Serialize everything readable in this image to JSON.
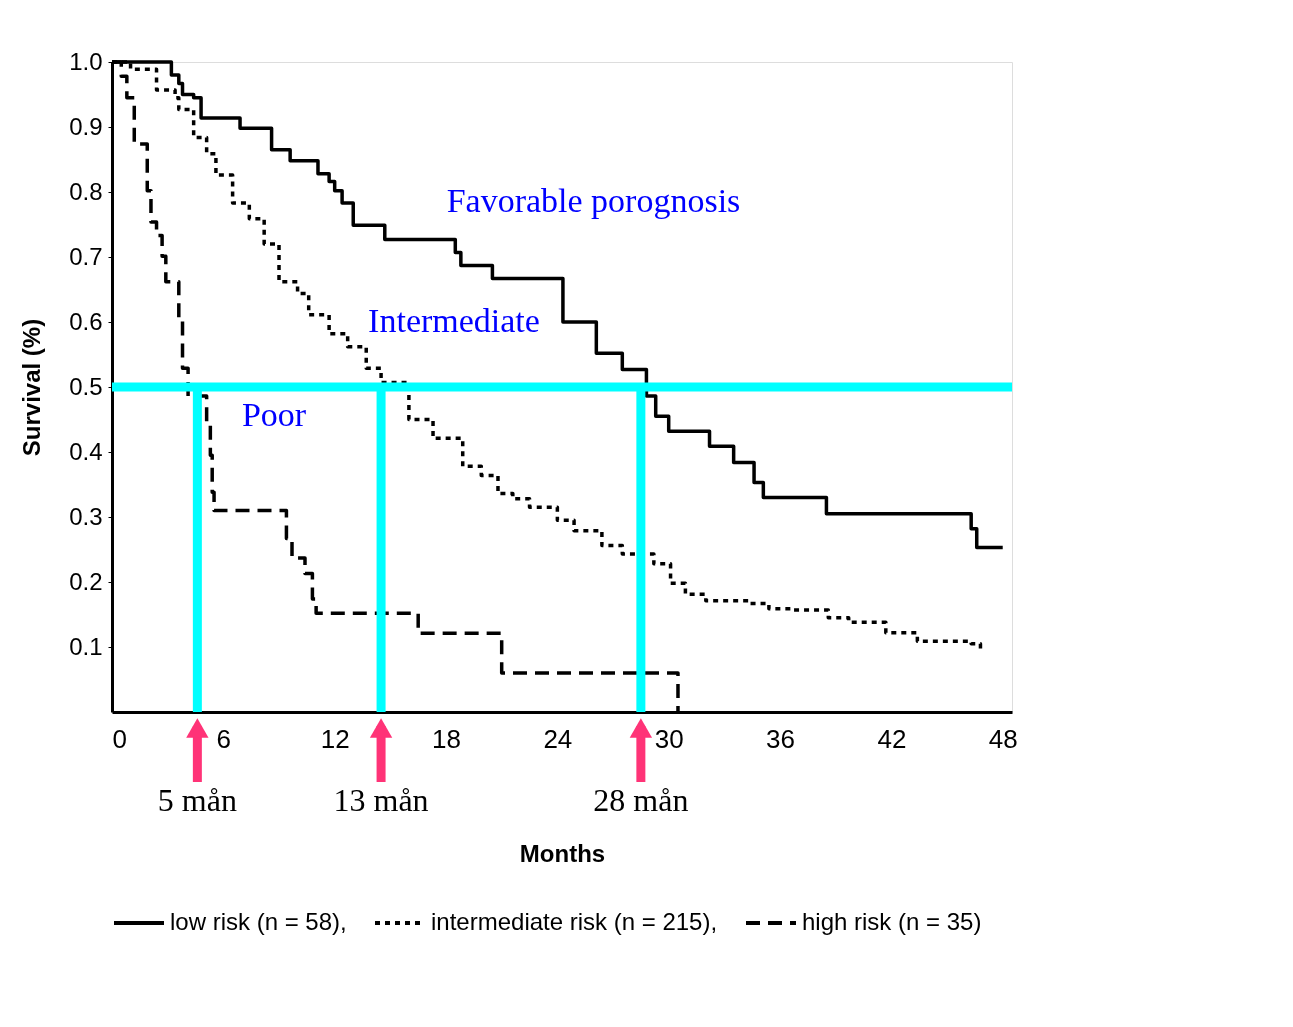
{
  "chart_data": {
    "type": "step",
    "xlabel": "Months",
    "ylabel": "Survival (%)",
    "xlim": [
      0,
      48.5
    ],
    "ylim": [
      0,
      1.0
    ],
    "xticks": [
      0,
      6,
      12,
      18,
      24,
      30,
      36,
      42,
      48
    ],
    "yticks": [
      0.1,
      0.2,
      0.3,
      0.4,
      0.5,
      0.6,
      0.7,
      0.8,
      0.9,
      {
        "value": 1.0,
        "label": "1.0"
      }
    ],
    "grid": false,
    "legend": "bottom",
    "series": [
      {
        "name": "low risk (n = 58),",
        "color": "#000000",
        "line_style": "solid",
        "x": [
          0,
          3.2,
          3.6,
          3.8,
          4.4,
          4.8,
          6.9,
          8.6,
          9.6,
          11.1,
          11.7,
          12.0,
          12.4,
          13.0,
          14.7,
          18.5,
          18.8,
          20.5,
          21.9,
          24.3,
          26.1,
          27.5,
          28.8,
          29.3,
          30.0,
          32.2,
          33.5,
          34.6,
          35.1,
          38.5,
          46.3,
          46.6,
          48.0
        ],
        "values": [
          1.0,
          0.98,
          0.967,
          0.95,
          0.945,
          0.914,
          0.898,
          0.865,
          0.848,
          0.828,
          0.816,
          0.802,
          0.783,
          0.749,
          0.727,
          0.707,
          0.687,
          0.667,
          0.667,
          0.6,
          0.552,
          0.527,
          0.486,
          0.455,
          0.432,
          0.409,
          0.384,
          0.353,
          0.33,
          0.305,
          0.282,
          0.253,
          0.253
        ]
      },
      {
        "name": "intermediate risk (n = 215),",
        "color": "#000000",
        "line_style": "dotted",
        "x": [
          0,
          1.0,
          2.4,
          3.4,
          3.6,
          4.4,
          5.1,
          5.6,
          6.5,
          7.4,
          8.2,
          9.0,
          10.0,
          10.6,
          11.7,
          12.7,
          13.7,
          14.5,
          16.0,
          17.3,
          18.9,
          19.9,
          20.8,
          21.6,
          22.5,
          24.0,
          24.9,
          26.4,
          27.5,
          29.2,
          30.1,
          30.9,
          32.0,
          34.3,
          35.4,
          36.7,
          38.6,
          39.7,
          41.7,
          43.4,
          46.3,
          46.8
        ],
        "values": [
          1.0,
          0.989,
          0.957,
          0.945,
          0.927,
          0.884,
          0.859,
          0.826,
          0.783,
          0.759,
          0.72,
          0.662,
          0.644,
          0.611,
          0.582,
          0.562,
          0.529,
          0.507,
          0.45,
          0.421,
          0.378,
          0.364,
          0.336,
          0.328,
          0.315,
          0.295,
          0.279,
          0.256,
          0.243,
          0.228,
          0.198,
          0.181,
          0.171,
          0.167,
          0.159,
          0.157,
          0.145,
          0.138,
          0.122,
          0.109,
          0.105,
          0.09
        ]
      },
      {
        "name": "high risk (n = 35)",
        "color": "#000000",
        "line_style": "dashed",
        "x": [
          0,
          0.5,
          0.8,
          1.2,
          1.9,
          2.1,
          2.4,
          2.7,
          2.9,
          3.6,
          3.8,
          4.1,
          5.1,
          5.3,
          5.4,
          5.5,
          9.0,
          9.4,
          9.7,
          10.4,
          10.8,
          11.0,
          16.5,
          21.0,
          30.4,
          30.5
        ],
        "values": [
          1.0,
          0.978,
          0.945,
          0.874,
          0.802,
          0.754,
          0.733,
          0.701,
          0.662,
          0.601,
          0.529,
          0.486,
          0.443,
          0.395,
          0.338,
          0.31,
          0.31,
          0.267,
          0.237,
          0.213,
          0.174,
          0.152,
          0.121,
          0.06,
          0.06,
          0.0
        ]
      }
    ],
    "ref_lines": [
      {
        "axis": "y",
        "value": 0.5,
        "label": null,
        "color": "#00ffff"
      },
      {
        "axis": "x",
        "value": 4.6,
        "label": "5 mån",
        "color": "#00ffff"
      },
      {
        "axis": "x",
        "value": 14.5,
        "label": "13 mån",
        "color": "#00ffff"
      },
      {
        "axis": "x",
        "value": 28.5,
        "label": "28 mån",
        "color": "#00ffff"
      }
    ],
    "annotations": [
      "Favorable porognosis",
      "Intermediate",
      "Poor"
    ]
  }
}
